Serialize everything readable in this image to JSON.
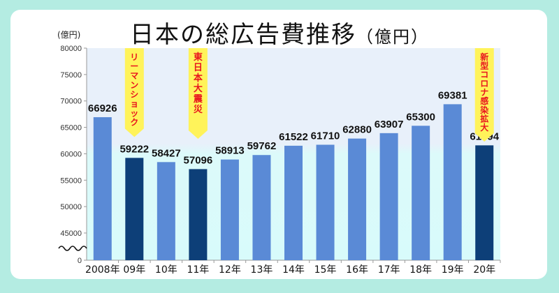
{
  "chart_data": {
    "type": "bar",
    "title": "日本の総広告費推移",
    "title_unit": "（億円）",
    "ylabel": "(億円)",
    "categories": [
      "2008年",
      "09年",
      "10年",
      "11年",
      "12年",
      "13年",
      "14年",
      "15年",
      "16年",
      "17年",
      "18年",
      "19年",
      "20年"
    ],
    "values": [
      66926,
      59222,
      58427,
      57096,
      58913,
      59762,
      61522,
      61710,
      62880,
      63907,
      65300,
      69381,
      61594
    ],
    "highlighted": [
      "09年",
      "11年",
      "20年"
    ],
    "yticks": [
      0,
      45000,
      50000,
      55000,
      60000,
      65000,
      70000,
      75000,
      80000
    ],
    "ylim": [
      0,
      80000
    ],
    "axis_break": "0–45000",
    "annotations": [
      {
        "category": "09年",
        "text": "リーマンショック"
      },
      {
        "category": "11年",
        "text": "東日本大震災"
      },
      {
        "category": "20年",
        "text": "新型コロナ感染拡大"
      }
    ],
    "colors": {
      "bar": "#5a8ad6",
      "highlight": "#0d3f78",
      "annotation_bg": "#fff35a",
      "annotation_text": "#e8141e",
      "plot_bg_top": "#e8f0fa",
      "plot_bg_bottom": "#d8fbfb"
    }
  }
}
